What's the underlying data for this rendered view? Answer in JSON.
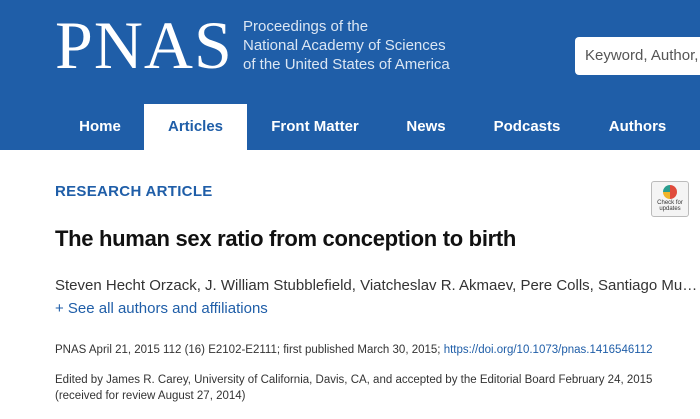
{
  "header": {
    "logo": "PNAS",
    "subtitle": [
      "Proceedings of the",
      "National Academy of Sciences",
      "of the United States of America"
    ],
    "search_placeholder": "Keyword, Author,"
  },
  "nav": {
    "items": [
      "Home",
      "Articles",
      "Front Matter",
      "News",
      "Podcasts",
      "Authors"
    ]
  },
  "article": {
    "type": "RESEARCH ARTICLE",
    "badge": [
      "Check for",
      "updates"
    ],
    "title": "The human sex ratio from conception to birth",
    "authors": "Steven Hecht Orzack, J. William Stubblefield, Viatcheslav R. Akmaev, Pere Colls, Santiago Mu…",
    "toggle": "+ See all authors and affiliations",
    "citation": "PNAS April 21, 2015 112 (16) E2102-E2111; first published March 30, 2015; ",
    "doi": "https://doi.org/10.1073/pnas.1416546112",
    "edited": [
      "Edited by James R. Carey, University of California, Davis, CA, and accepted by the Editorial Board February 24, 2015",
      "(received for review August 27, 2014)"
    ]
  }
}
